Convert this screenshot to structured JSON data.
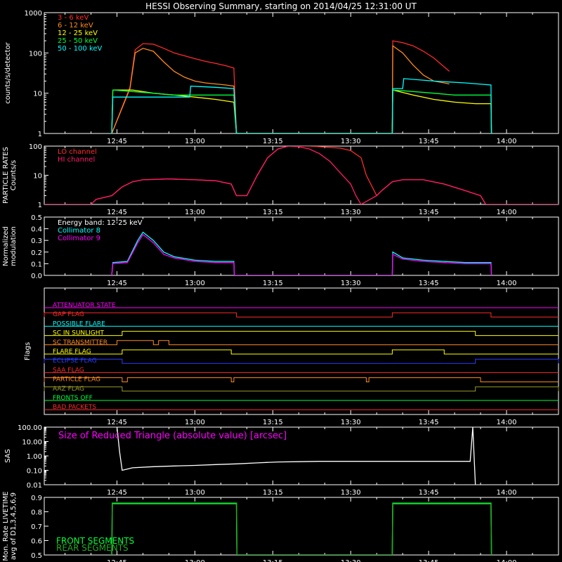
{
  "title": "HESSI Observing Summary, starting on 2014/04/25 12:31:00 UT",
  "colors": {
    "bg": "#000000",
    "axis": "#ffffff",
    "red": "#ff2a2a",
    "orange": "#ff8a1e",
    "yellow": "#ffff00",
    "green": "#00ff3a",
    "cyan": "#00ffff",
    "magenta": "#ff00ff",
    "pink": "#ff1a6a",
    "blue": "#2a3cff",
    "olive": "#9a9a2a",
    "dkgreen": "#22aa22",
    "white": "#ffffff",
    "gray": "#cfcfcf"
  },
  "time_ticks": [
    "12:45",
    "13:00",
    "13:15",
    "13:30",
    "13:45",
    "14:00"
  ],
  "chart_data": [
    {
      "id": "count-rates",
      "type": "line",
      "ylabel": "counts/s/detector",
      "yscale": "log",
      "ylim": [
        1,
        1000
      ],
      "ytick_labels": [
        "1",
        "10",
        "100",
        "1000"
      ],
      "xlim": [
        "12:31",
        "14:10"
      ],
      "series": [
        {
          "name": "3 - 6 keV",
          "color": "red",
          "x": [
            "12:44",
            "12:47.5",
            "12:48.5",
            "12:50",
            "12:52",
            "12:54",
            "12:56",
            "12:58",
            "13:00",
            "13:02",
            "13:04",
            "13:06",
            "13:07.5",
            "13:08",
            "13:38",
            "13:38.1",
            "13:40",
            "13:42",
            "13:44",
            "13:46",
            "13:48",
            "13:49"
          ],
          "y": [
            1,
            14,
            120,
            170,
            165,
            130,
            100,
            85,
            72,
            62,
            55,
            48,
            42,
            1,
            1,
            200,
            180,
            150,
            110,
            75,
            45,
            35
          ]
        },
        {
          "name": "6 - 12 keV",
          "color": "orange",
          "x": [
            "12:44",
            "12:47.5",
            "12:48.5",
            "12:50",
            "12:52",
            "12:54",
            "12:56",
            "12:58",
            "13:00",
            "13:02",
            "13:04",
            "13:06",
            "13:07.5",
            "13:08",
            "13:38",
            "13:38.1",
            "13:40",
            "13:42",
            "13:44",
            "13:46",
            "13:48",
            "13:49"
          ],
          "y": [
            1,
            13,
            100,
            130,
            110,
            60,
            35,
            25,
            20,
            18,
            17,
            16,
            15,
            1,
            1,
            150,
            100,
            50,
            28,
            20,
            18,
            17
          ]
        },
        {
          "name": "12 - 25 keV",
          "color": "yellow",
          "x": [
            "12:44",
            "12:44.2",
            "12:48",
            "12:52",
            "12:56",
            "13:00",
            "13:04",
            "13:07.5",
            "13:08",
            "13:38",
            "13:38.1",
            "13:42",
            "13:46",
            "13:50",
            "13:54",
            "13:57",
            "13:57.1"
          ],
          "y": [
            1,
            12,
            12,
            10,
            9,
            8,
            7,
            6,
            1,
            1,
            12,
            9,
            7,
            6,
            5.5,
            5.5,
            1
          ]
        },
        {
          "name": "25 - 50 keV",
          "color": "green",
          "x": [
            "12:44",
            "12:44.2",
            "12:48",
            "12:52",
            "12:56",
            "13:00",
            "13:04",
            "13:07.5",
            "13:08",
            "13:38",
            "13:38.1",
            "13:42",
            "13:46",
            "13:50",
            "13:54",
            "13:57",
            "13:57.1"
          ],
          "y": [
            1,
            12,
            11,
            10,
            9,
            9,
            9,
            9,
            1,
            1,
            12,
            11,
            10,
            9,
            9,
            9,
            1
          ]
        },
        {
          "name": "50 - 100 keV",
          "color": "cyan",
          "x": [
            "12:44",
            "12:44.2",
            "12:48",
            "12:52",
            "12:56",
            "12:59",
            "12:59.2",
            "13:04",
            "13:07.5",
            "13:08",
            "13:38",
            "13:38.1",
            "13:40",
            "13:40.2",
            "13:46",
            "13:52",
            "13:57",
            "13:57.1"
          ],
          "y": [
            1,
            8,
            8,
            8,
            8,
            8,
            15,
            14,
            13,
            1,
            1,
            13,
            13,
            23,
            20,
            18,
            16,
            1
          ]
        }
      ]
    },
    {
      "id": "particle-rates",
      "type": "line",
      "ylabel": "PARTICLE RATES\nCounts/s",
      "yscale": "log",
      "ylim": [
        1,
        100
      ],
      "ytick_labels": [
        "1",
        "10",
        "100"
      ],
      "xlim": [
        "12:31",
        "14:10"
      ],
      "series": [
        {
          "name": "LO channel",
          "color": "red",
          "x": [
            "12:31",
            "12:40",
            "12:41",
            "12:44",
            "12:46",
            "12:48",
            "12:50",
            "12:55",
            "13:00",
            "13:04",
            "13:07",
            "13:08",
            "13:10",
            "13:12",
            "13:14",
            "13:16",
            "13:18",
            "13:20",
            "13:22",
            "13:24",
            "13:26",
            "13:28",
            "13:30",
            "13:32",
            "13:33",
            "13:35",
            "13:36",
            "13:38",
            "13:40",
            "13:44",
            "13:48",
            "13:52",
            "13:55",
            "13:56",
            "13:58",
            "14:10"
          ],
          "y": [
            1,
            1,
            1.5,
            2,
            4,
            6,
            7,
            7.5,
            7,
            6.5,
            5,
            2,
            2,
            10,
            40,
            80,
            100,
            100,
            100,
            95,
            90,
            85,
            70,
            40,
            10,
            2,
            3,
            6,
            7,
            7,
            5,
            3,
            2,
            1,
            1,
            1
          ]
        },
        {
          "name": "HI channel",
          "color": "pink",
          "x": [
            "12:31",
            "12:40",
            "12:41",
            "12:44",
            "12:46",
            "12:48",
            "12:50",
            "12:55",
            "13:00",
            "13:04",
            "13:07",
            "13:08",
            "13:10",
            "13:12",
            "13:14",
            "13:16",
            "13:18",
            "13:20",
            "13:22",
            "13:24",
            "13:26",
            "13:28",
            "13:30",
            "13:31",
            "13:32",
            "13:35",
            "13:36",
            "13:38",
            "13:40",
            "13:44",
            "13:48",
            "13:52",
            "13:55",
            "13:56",
            "13:58",
            "14:10"
          ],
          "y": [
            1,
            1,
            1.5,
            2,
            4,
            6,
            7,
            7.5,
            7,
            6.5,
            5,
            2,
            2,
            10,
            40,
            80,
            100,
            95,
            80,
            55,
            30,
            12,
            5,
            2,
            1,
            2,
            3,
            6,
            7,
            7,
            5,
            3,
            2,
            1,
            1,
            1
          ]
        }
      ]
    },
    {
      "id": "modulation",
      "type": "line",
      "ylabel": "Normalized\nmodulation",
      "ylim": [
        0,
        0.5
      ],
      "ytick_labels": [
        "0.0",
        "0.1",
        "0.2",
        "0.3",
        "0.4",
        "0.5"
      ],
      "xlim": [
        "12:31",
        "14:10"
      ],
      "annotation": "Energy band: 12-25 keV",
      "series": [
        {
          "name": "Collimator 8",
          "color": "cyan",
          "x": [
            "12:44",
            "12:44.2",
            "12:47",
            "12:49",
            "12:50",
            "12:52",
            "12:54",
            "12:56",
            "13:00",
            "13:04",
            "13:07.5",
            "13:07.6",
            "13:38",
            "13:38.1",
            "13:40",
            "13:44",
            "13:48",
            "13:52",
            "13:57",
            "13:57.1"
          ],
          "y": [
            0,
            0.11,
            0.12,
            0.3,
            0.37,
            0.3,
            0.2,
            0.16,
            0.13,
            0.12,
            0.12,
            0,
            0,
            0.2,
            0.15,
            0.13,
            0.12,
            0.11,
            0.11,
            0
          ]
        },
        {
          "name": "Collimator 9",
          "color": "magenta",
          "x": [
            "12:44",
            "12:44.2",
            "12:47",
            "12:49",
            "12:50",
            "12:52",
            "12:54",
            "12:56",
            "13:00",
            "13:04",
            "13:07.5",
            "13:07.6",
            "13:38",
            "13:38.1",
            "13:40",
            "13:44",
            "13:48",
            "13:52",
            "13:57",
            "13:57.1"
          ],
          "y": [
            0,
            0.1,
            0.11,
            0.28,
            0.35,
            0.28,
            0.18,
            0.15,
            0.12,
            0.11,
            0.11,
            0,
            0,
            0.18,
            0.14,
            0.12,
            0.11,
            0.1,
            0.1,
            0
          ]
        }
      ]
    },
    {
      "id": "flags",
      "type": "line",
      "ylabel": "Flags",
      "xlim": [
        "12:31",
        "14:10"
      ],
      "series": [
        {
          "name": "ATTENUATOR STATE",
          "color": "magenta",
          "high": [],
          "level": 0
        },
        {
          "name": "GAP FLAG",
          "color": "red",
          "high": [
            [
              "12:31",
              "13:08"
            ],
            [
              "13:38",
              "13:57"
            ]
          ],
          "level": 1
        },
        {
          "name": "POSSIBLE FLARE",
          "color": "cyan",
          "high": [],
          "level": 2
        },
        {
          "name": "SC IN SUNLIGHT",
          "color": "yellow",
          "high": [
            [
              "12:46",
              "13:54"
            ]
          ],
          "level": 3
        },
        {
          "name": "SC TRANSMITTER",
          "color": "orange",
          "high": [
            [
              "12:45",
              "12:52"
            ],
            [
              "12:53",
              "12:55"
            ]
          ],
          "level": 4
        },
        {
          "name": "FLARE FLAG",
          "color": "yellow",
          "high": [
            [
              "12:46",
              "13:07"
            ],
            [
              "13:38",
              "13:48"
            ]
          ],
          "level": 5
        },
        {
          "name": "ECLIPSE FLAG",
          "color": "blue",
          "high": [
            [
              "12:31",
              "12:46"
            ],
            [
              "13:54",
              "14:10"
            ]
          ],
          "level": 6
        },
        {
          "name": "SAA FLAG",
          "color": "red",
          "high": [],
          "level": 7
        },
        {
          "name": "PARTICLE FLAG",
          "color": "orange",
          "high": [
            [
              "12:31",
              "12:46"
            ],
            [
              "12:47",
              "13:07"
            ],
            [
              "13:07.5",
              "13:33"
            ],
            [
              "13:33.5",
              "13:55"
            ]
          ],
          "level": 8
        },
        {
          "name": "AAZ FLAG",
          "color": "olive",
          "high": [
            [
              "12:31",
              "12:46"
            ],
            [
              "13:54",
              "14:10"
            ]
          ],
          "level": 9
        },
        {
          "name": "FRONTS OFF",
          "color": "green",
          "high": [],
          "level": 10
        },
        {
          "name": "BAD PACKETS",
          "color": "red",
          "high": [],
          "level": 11
        }
      ]
    },
    {
      "id": "sas",
      "type": "line",
      "ylabel": "SAS",
      "yscale": "log",
      "ylim": [
        0.01,
        100
      ],
      "ytick_labels": [
        "0.01",
        "0.10",
        "1.00",
        "10.00",
        "100.00"
      ],
      "xlim": [
        "12:31",
        "14:10"
      ],
      "annotation": "Size of Reduced Triangle (absolute value) [arcsec]",
      "series": [
        {
          "name": "Size of Reduced Triangle (absolute value) [arcsec]",
          "color": "white",
          "x": [
            "12:45",
            "12:45.5",
            "12:46",
            "12:48",
            "12:52",
            "12:56",
            "13:00",
            "13:04",
            "13:08",
            "13:12",
            "13:16",
            "13:20",
            "13:24",
            "13:28",
            "13:32",
            "13:36",
            "13:40",
            "13:44",
            "13:48",
            "13:52",
            "13:53",
            "13:53.5",
            "13:54"
          ],
          "y": [
            100,
            2,
            0.1,
            0.15,
            0.18,
            0.2,
            0.22,
            0.25,
            0.28,
            0.33,
            0.38,
            0.4,
            0.42,
            0.42,
            0.42,
            0.42,
            0.42,
            0.42,
            0.42,
            0.42,
            0.42,
            100,
            0.01
          ]
        }
      ]
    },
    {
      "id": "livetime",
      "type": "line",
      "ylabel": "Mon. Rate LIVETIME\navg of D1,3,4,5,6,9",
      "ylim": [
        0.5,
        0.9
      ],
      "ytick_labels": [
        "0.5",
        "0.6",
        "0.7",
        "0.8",
        "0.9"
      ],
      "xlim": [
        "12:31",
        "14:10"
      ],
      "series": [
        {
          "name": "FRONT SEGMENTS",
          "color": "green",
          "x": [
            "12:44",
            "12:44.1",
            "13:08",
            "13:08.1",
            "13:38",
            "13:38.1",
            "13:57",
            "13:57.1"
          ],
          "y": [
            0.5,
            0.86,
            0.86,
            0.5,
            0.5,
            0.86,
            0.86,
            0.5
          ]
        },
        {
          "name": "REAR SEGMENTS",
          "color": "dkgreen",
          "x": [
            "12:44",
            "12:44.1",
            "13:08",
            "13:08.1",
            "13:38",
            "13:38.1",
            "13:57",
            "13:57.1"
          ],
          "y": [
            0.5,
            0.855,
            0.855,
            0.5,
            0.5,
            0.855,
            0.855,
            0.5
          ]
        }
      ]
    }
  ]
}
